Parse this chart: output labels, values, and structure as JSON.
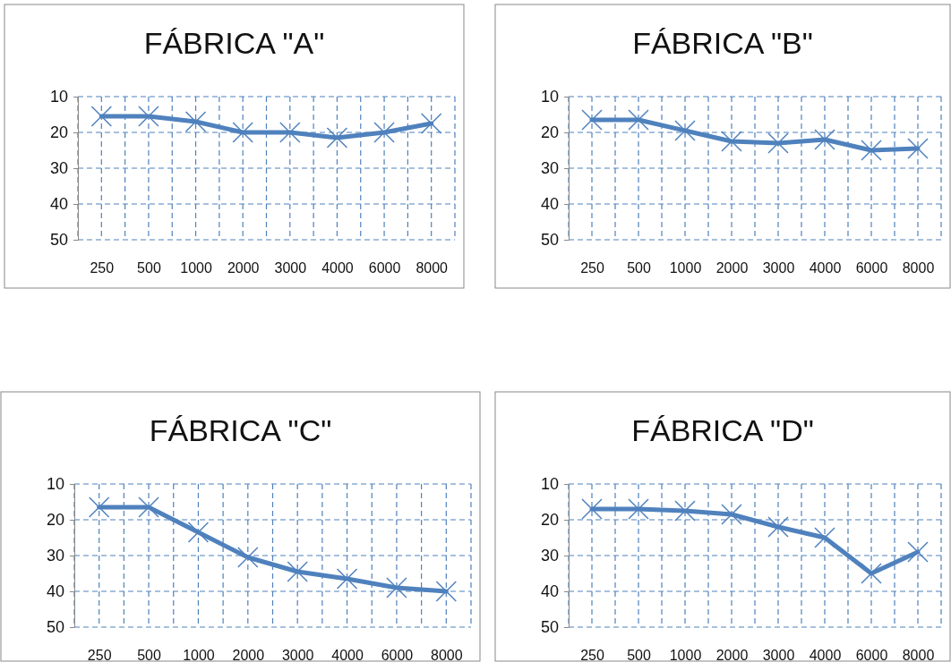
{
  "chart_data": [
    {
      "type": "line",
      "title": "FÁBRICA \"A\"",
      "categories": [
        "250",
        "500",
        "1000",
        "2000",
        "3000",
        "4000",
        "6000",
        "8000"
      ],
      "series": [
        {
          "color": "#4f81bd",
          "values": [
            15.5,
            15.5,
            17,
            20,
            20,
            21.5,
            20,
            17.5
          ]
        }
      ],
      "ylim": [
        50,
        10
      ],
      "yticks": [
        10,
        20,
        30,
        40,
        50
      ],
      "grid": true,
      "marker": "cross",
      "line_style": "solid"
    },
    {
      "type": "line",
      "title": "FÁBRICA \"B\"",
      "categories": [
        "250",
        "500",
        "1000",
        "2000",
        "3000",
        "4000",
        "6000",
        "8000"
      ],
      "series": [
        {
          "color": "#4f81bd",
          "values": [
            16.5,
            16.5,
            19.5,
            22.5,
            23,
            22,
            25,
            24.5
          ]
        }
      ],
      "ylim": [
        50,
        10
      ],
      "yticks": [
        10,
        20,
        30,
        40,
        50
      ],
      "grid": true,
      "marker": "cross",
      "line_style": "solid"
    },
    {
      "type": "line",
      "title": "FÁBRICA \"C\"",
      "categories": [
        "250",
        "500",
        "1000",
        "2000",
        "3000",
        "4000",
        "6000",
        "8000"
      ],
      "series": [
        {
          "color": "#4f81bd",
          "values": [
            16.5,
            16.5,
            23.5,
            30.5,
            34.5,
            36.5,
            39,
            40
          ]
        }
      ],
      "ylim": [
        50,
        10
      ],
      "yticks": [
        10,
        20,
        30,
        40,
        50
      ],
      "grid": true,
      "marker": "cross",
      "line_style": "solid"
    },
    {
      "type": "line",
      "title": "FÁBRICA \"D\"",
      "categories": [
        "250",
        "500",
        "1000",
        "2000",
        "3000",
        "4000",
        "6000",
        "8000"
      ],
      "series": [
        {
          "color": "#4f81bd",
          "values": [
            17,
            17,
            17.5,
            18.5,
            22,
            25,
            35,
            29
          ]
        }
      ],
      "ylim": [
        50,
        10
      ],
      "yticks": [
        10,
        20,
        30,
        40,
        50
      ],
      "grid": true,
      "marker": "cross",
      "line_style": "solid"
    }
  ]
}
